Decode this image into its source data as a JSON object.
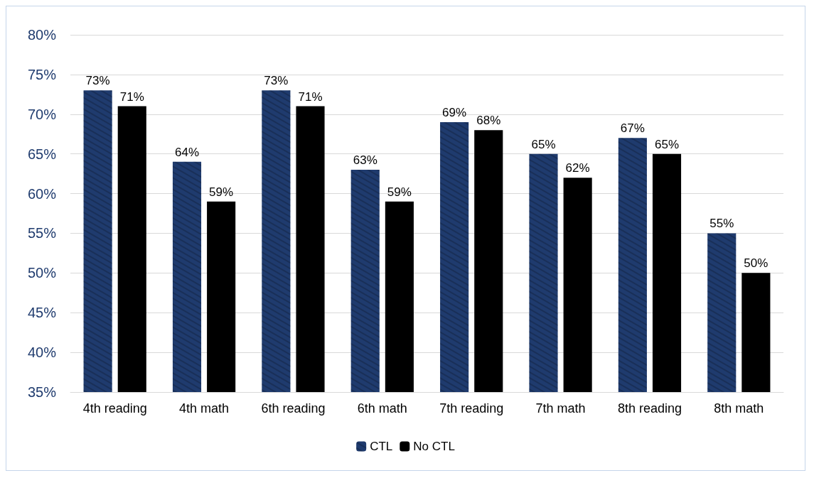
{
  "chart_data": {
    "type": "bar",
    "categories": [
      "4th reading",
      "4th math",
      "6th reading",
      "6th math",
      "7th reading",
      "7th math",
      "8th reading",
      "8th math"
    ],
    "series": [
      {
        "name": "CTL",
        "color": "#1f3b6e",
        "values": [
          73,
          64,
          73,
          63,
          69,
          65,
          67,
          55
        ],
        "value_labels": [
          "73%",
          "64%",
          "73%",
          "63%",
          "69%",
          "65%",
          "67%",
          "55%"
        ]
      },
      {
        "name": "No CTL",
        "color": "#000000",
        "values": [
          71,
          59,
          71,
          59,
          68,
          62,
          65,
          50
        ],
        "value_labels": [
          "71%",
          "59%",
          "71%",
          "59%",
          "68%",
          "62%",
          "65%",
          "50%"
        ]
      }
    ],
    "ylim": [
      35,
      80
    ],
    "yticks": [
      {
        "value": 35,
        "label": "35%"
      },
      {
        "value": 40,
        "label": "40%"
      },
      {
        "value": 45,
        "label": "45%"
      },
      {
        "value": 50,
        "label": "50%"
      },
      {
        "value": 55,
        "label": "55%"
      },
      {
        "value": 60,
        "label": "60%"
      },
      {
        "value": 65,
        "label": "65%"
      },
      {
        "value": 70,
        "label": "70%"
      },
      {
        "value": 75,
        "label": "75%"
      },
      {
        "value": 80,
        "label": "80%"
      }
    ],
    "grid": "y",
    "legend": "bottom"
  }
}
